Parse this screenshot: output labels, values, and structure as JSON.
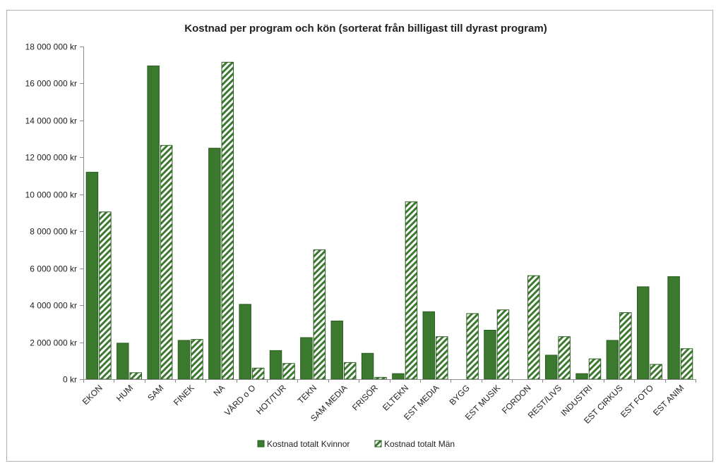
{
  "chart_data": {
    "type": "bar",
    "title": "Kostnad per program och kön (sorterat från billigast till dyrast program)",
    "xlabel": "",
    "ylabel": "",
    "ylim": [
      0,
      18000000
    ],
    "y_ticks": [
      0,
      2000000,
      4000000,
      6000000,
      8000000,
      10000000,
      12000000,
      14000000,
      16000000,
      18000000
    ],
    "y_tick_labels": [
      "0 kr",
      "2 000 000 kr",
      "4 000 000 kr",
      "6 000 000 kr",
      "8 000 000 kr",
      "10 000 000 kr",
      "12 000 000 kr",
      "14 000 000 kr",
      "16 000 000 kr",
      "18 000 000 kr"
    ],
    "categories": [
      "EKON",
      "HUM",
      "SAM",
      "FINEK",
      "NA",
      "VÅRD o O",
      "HOT/TUR",
      "TEKN",
      "SAM MEDIA",
      "FRISÖR",
      "ELTEKN",
      "EST MEDIA",
      "BYGG",
      "EST MUSIK",
      "FORDON",
      "REST/LIVS",
      "INDUSTRI",
      "EST CIRKUS",
      "EST FOTO",
      "EST ANIM"
    ],
    "series": [
      {
        "name": "Kostnad totalt Kvinnor",
        "pattern": "solid",
        "values": [
          11200000,
          1950000,
          16950000,
          2100000,
          12500000,
          4050000,
          1550000,
          2250000,
          3150000,
          1400000,
          300000,
          3650000,
          0,
          2650000,
          0,
          1300000,
          300000,
          2100000,
          5000000,
          5550000
        ]
      },
      {
        "name": "Kostnad totalt Män",
        "pattern": "diagonal-stripes",
        "values": [
          9050000,
          350000,
          12650000,
          2150000,
          17150000,
          600000,
          850000,
          7000000,
          900000,
          100000,
          9600000,
          2300000,
          3550000,
          3750000,
          5600000,
          2300000,
          1100000,
          3600000,
          800000,
          1650000
        ]
      }
    ],
    "legend_position": "bottom",
    "grid": false,
    "colors": {
      "kvinnor": "#3b7a2e",
      "man_stripe": "#3b7a2e",
      "man_bg": "#ffffff",
      "axis": "#8c8c8c",
      "border": "#b0b0b0"
    }
  }
}
